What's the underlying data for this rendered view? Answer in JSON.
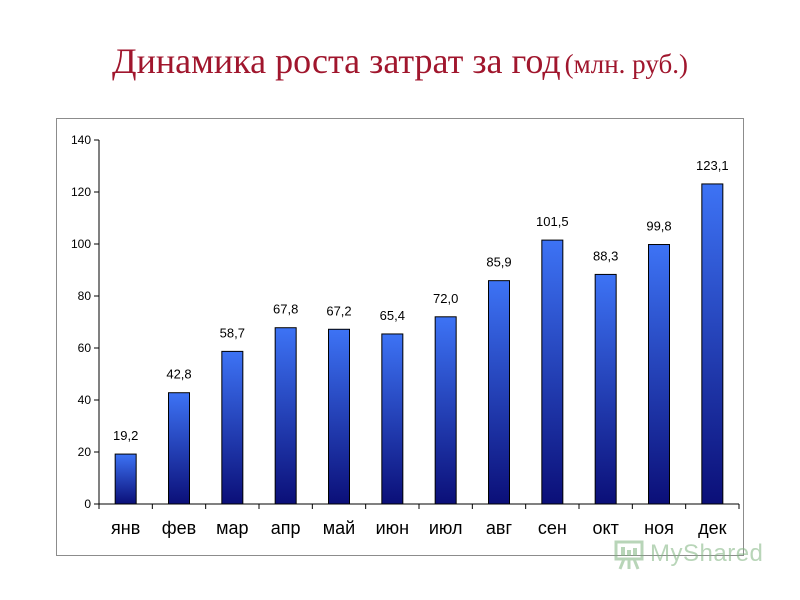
{
  "title": {
    "main": "Динамика роста затрат за год",
    "unit": "(млн. руб.)"
  },
  "watermark": {
    "text": "MyShared",
    "icon": "presentation-board-icon",
    "color": "#7fb37f"
  },
  "colors": {
    "bar_top": "#3d73f5",
    "bar_bottom": "#0b0f78",
    "title": "#a0162d"
  },
  "chart_data": {
    "type": "bar",
    "title": "Динамика роста затрат за год (млн. руб.)",
    "xlabel": "",
    "ylabel": "",
    "categories": [
      "янв",
      "фев",
      "мар",
      "апр",
      "май",
      "июн",
      "июл",
      "авг",
      "сен",
      "окт",
      "ноя",
      "дек"
    ],
    "values": [
      19.2,
      42.8,
      58.7,
      67.8,
      67.2,
      65.4,
      72.0,
      85.9,
      101.5,
      88.3,
      99.8,
      123.1
    ],
    "data_labels": [
      "19,2",
      "42,8",
      "58,7",
      "67,8",
      "67,2",
      "65,4",
      "72,0",
      "85,9",
      "101,5",
      "88,3",
      "99,8",
      "123,1"
    ],
    "ylim": [
      0,
      140
    ],
    "yticks": [
      0,
      20,
      40,
      60,
      80,
      100,
      120,
      140
    ],
    "ytick_labels": [
      "0",
      "20",
      "40",
      "60",
      "80",
      "100",
      "120",
      "140"
    ],
    "grid": false,
    "legend": "none"
  }
}
